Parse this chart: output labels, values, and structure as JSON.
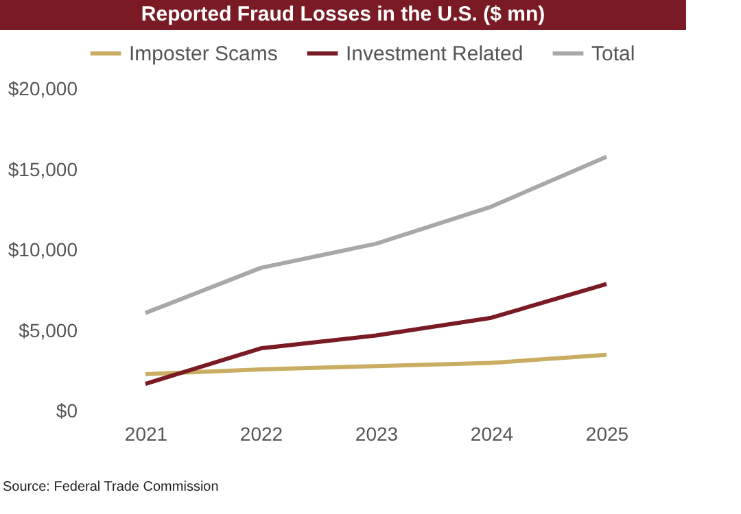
{
  "chart_data": {
    "type": "line",
    "title": "Reported Fraud Losses in the U.S. ($ mn)",
    "categories": [
      "2021",
      "2022",
      "2023",
      "2024",
      "2025"
    ],
    "series": [
      {
        "name": "Imposter Scams",
        "color": "#c8ad62",
        "values": [
          2300,
          2600,
          2800,
          3000,
          3500
        ]
      },
      {
        "name": "Investment Related",
        "color": "#7a1a24",
        "values": [
          1700,
          3900,
          4700,
          5800,
          7900
        ]
      },
      {
        "name": "Total",
        "color": "#a8a8a8",
        "values": [
          6100,
          8900,
          10400,
          12700,
          15800
        ]
      }
    ],
    "ylim": [
      0,
      20000
    ],
    "yticks": [
      {
        "value": 0,
        "label": "$0"
      },
      {
        "value": 5000,
        "label": "$5,000"
      },
      {
        "value": 10000,
        "label": "$10,000"
      },
      {
        "value": 15000,
        "label": "$15,000"
      },
      {
        "value": 20000,
        "label": "$20,000"
      }
    ],
    "legend": "top",
    "grid": false,
    "marker": "none",
    "line_style": "solid",
    "annotations": [
      "Source: Federal Trade Commission"
    ]
  }
}
